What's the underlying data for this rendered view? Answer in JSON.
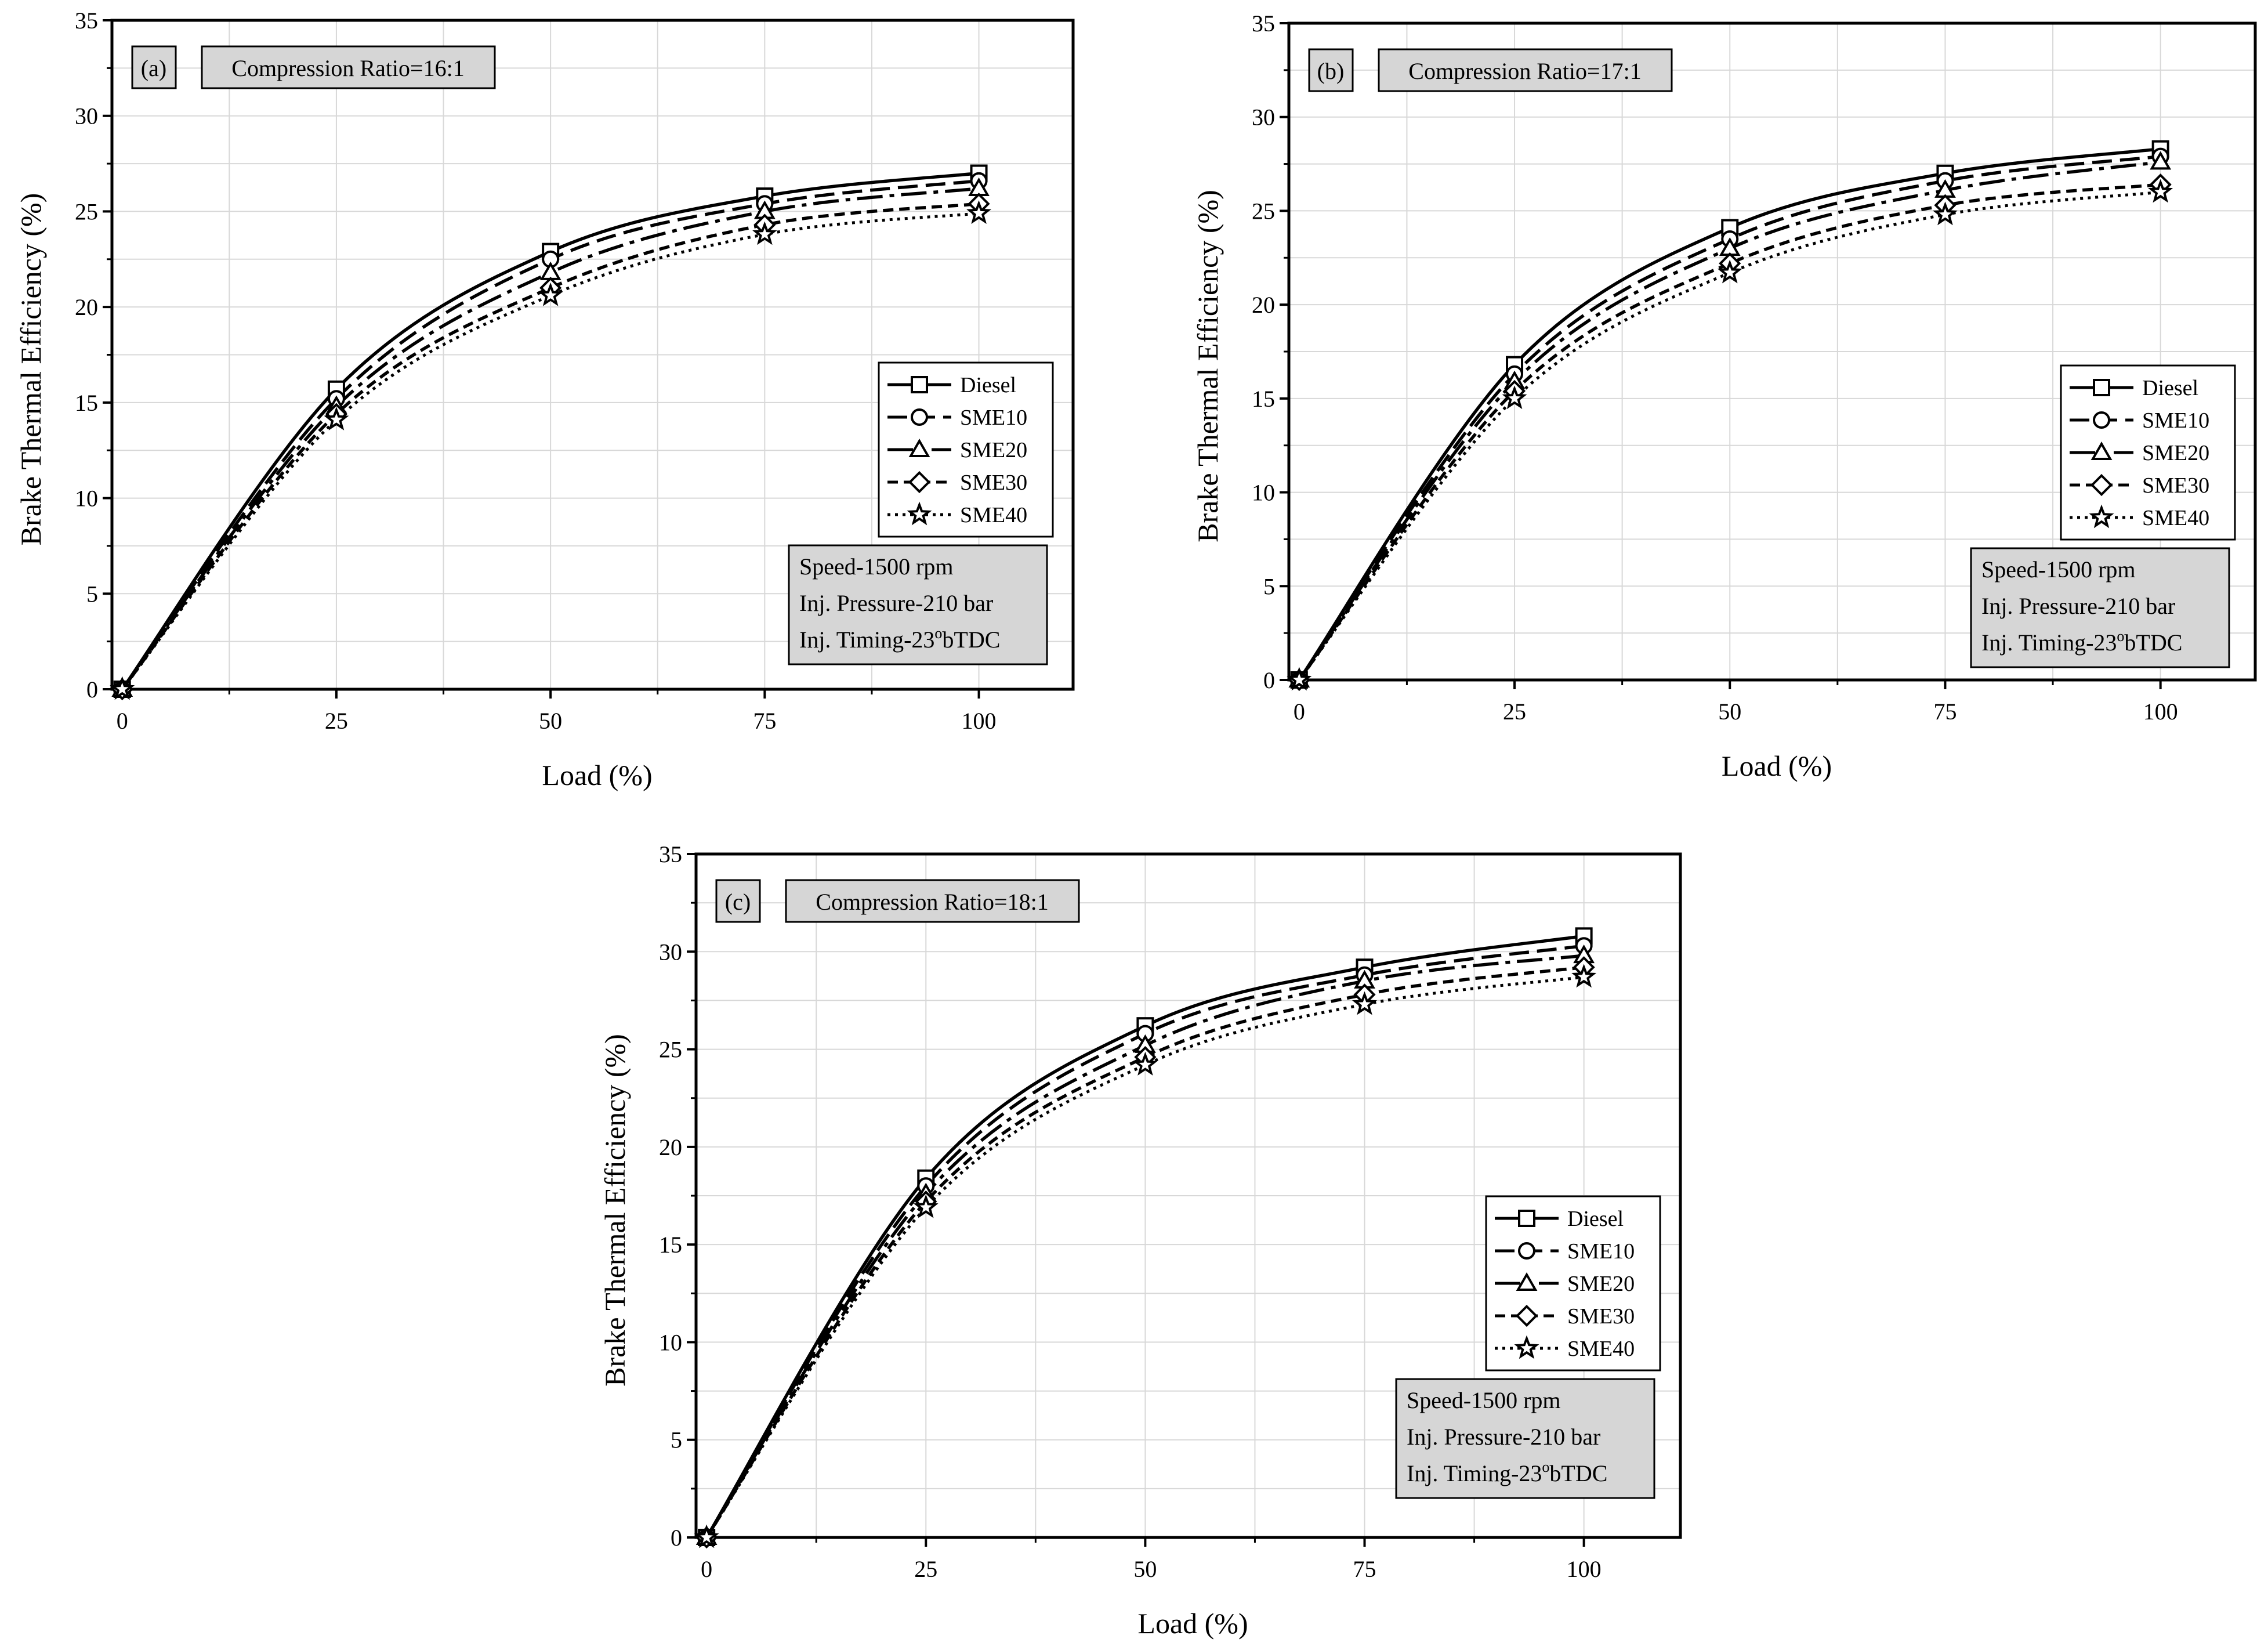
{
  "chart_data": [
    {
      "type": "line",
      "panel_label": "(a)",
      "title": "Compression Ratio=16:1",
      "xlabel": "Load (%)",
      "ylabel": "Brake Thermal Efficiency (%)",
      "x": [
        0,
        25,
        50,
        75,
        100
      ],
      "x_ticks": [
        "0",
        "25",
        "50",
        "75",
        "100"
      ],
      "y_ticks": [
        "0",
        "5",
        "10",
        "15",
        "20",
        "25",
        "30",
        "35"
      ],
      "xlim": [
        -1.2,
        111
      ],
      "ylim": [
        0,
        35
      ],
      "grid": true,
      "legend_position": "right",
      "series": [
        {
          "name": "Diesel",
          "values": [
            0,
            15.7,
            22.9,
            25.8,
            27.0
          ]
        },
        {
          "name": "SME10",
          "values": [
            0,
            15.2,
            22.5,
            25.4,
            26.6
          ]
        },
        {
          "name": "SME20",
          "values": [
            0,
            14.8,
            21.8,
            25.0,
            26.2
          ]
        },
        {
          "name": "SME30",
          "values": [
            0,
            14.4,
            21.0,
            24.3,
            25.4
          ]
        },
        {
          "name": "SME40",
          "values": [
            0,
            14.1,
            20.6,
            23.8,
            24.9
          ]
        }
      ],
      "annotation": {
        "speed": "Speed-1500 rpm",
        "pressure": "Inj. Pressure-210 bar",
        "timing_prefix": "Inj. Timing-23",
        "timing_sup": "o",
        "timing_suffix": "bTDC"
      }
    },
    {
      "type": "line",
      "panel_label": "(b)",
      "title": "Compression Ratio=17:1",
      "xlabel": "Load (%)",
      "ylabel": "Brake Thermal Efficiency (%)",
      "x": [
        0,
        25,
        50,
        75,
        100
      ],
      "x_ticks": [
        "0",
        "25",
        "50",
        "75",
        "100"
      ],
      "y_ticks": [
        "0",
        "5",
        "10",
        "15",
        "20",
        "25",
        "30",
        "35"
      ],
      "xlim": [
        -1.2,
        111
      ],
      "ylim": [
        0,
        35
      ],
      "grid": true,
      "legend_position": "right",
      "series": [
        {
          "name": "Diesel",
          "values": [
            0,
            16.8,
            24.1,
            27.0,
            28.3
          ]
        },
        {
          "name": "SME10",
          "values": [
            0,
            16.3,
            23.5,
            26.6,
            27.9
          ]
        },
        {
          "name": "SME20",
          "values": [
            0,
            15.9,
            23.0,
            26.1,
            27.6
          ]
        },
        {
          "name": "SME30",
          "values": [
            0,
            15.4,
            22.2,
            25.3,
            26.4
          ]
        },
        {
          "name": "SME40",
          "values": [
            0,
            15.0,
            21.7,
            24.8,
            26.0
          ]
        }
      ],
      "annotation": {
        "speed": "Speed-1500 rpm",
        "pressure": "Inj. Pressure-210 bar",
        "timing_prefix": "Inj. Timing-23",
        "timing_sup": "o",
        "timing_suffix": "bTDC"
      }
    },
    {
      "type": "line",
      "panel_label": "(c)",
      "title": "Compression Ratio=18:1",
      "xlabel": "Load (%)",
      "ylabel": "Brake Thermal Efficiency (%)",
      "x": [
        0,
        25,
        50,
        75,
        100
      ],
      "x_ticks": [
        "0",
        "25",
        "50",
        "75",
        "100"
      ],
      "y_ticks": [
        "0",
        "5",
        "10",
        "15",
        "20",
        "25",
        "30",
        "35"
      ],
      "xlim": [
        -1.2,
        111
      ],
      "ylim": [
        0,
        35
      ],
      "grid": true,
      "legend_position": "right",
      "series": [
        {
          "name": "Diesel",
          "values": [
            0,
            18.4,
            26.2,
            29.2,
            30.8
          ]
        },
        {
          "name": "SME10",
          "values": [
            0,
            18.0,
            25.8,
            28.8,
            30.3
          ]
        },
        {
          "name": "SME20",
          "values": [
            0,
            17.6,
            25.2,
            28.5,
            29.8
          ]
        },
        {
          "name": "SME30",
          "values": [
            0,
            17.2,
            24.6,
            27.8,
            29.2
          ]
        },
        {
          "name": "SME40",
          "values": [
            0,
            16.9,
            24.2,
            27.3,
            28.7
          ]
        }
      ],
      "annotation": {
        "speed": "Speed-1500 rpm",
        "pressure": "Inj. Pressure-210 bar",
        "timing_prefix": "Inj. Timing-23",
        "timing_sup": "o",
        "timing_suffix": "bTDC"
      }
    }
  ]
}
